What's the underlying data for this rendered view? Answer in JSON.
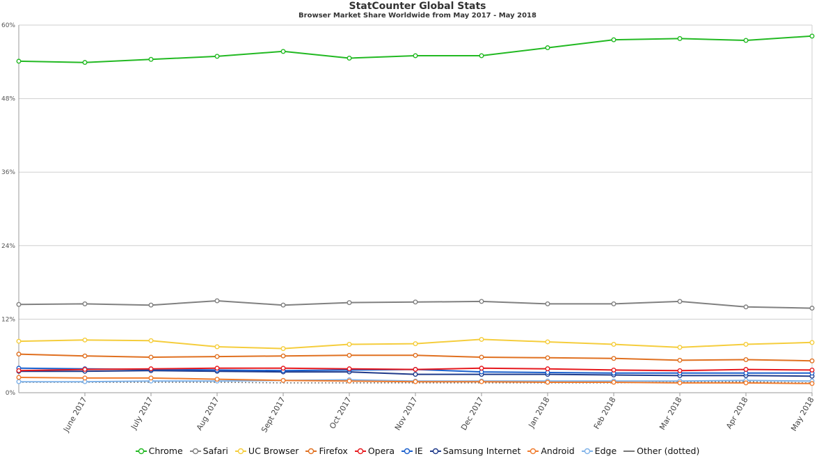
{
  "chart_data": {
    "type": "line",
    "title": "StatCounter Global Stats",
    "subtitle": "Browser Market Share Worldwide from May 2017 - May 2018",
    "xlabel": "",
    "ylabel": "",
    "x": [
      "May 2017",
      "June 2017",
      "July 2017",
      "Aug 2017",
      "Sept 2017",
      "Oct 2017",
      "Nov 2017",
      "Dec 2017",
      "Jan 2018",
      "Feb 2018",
      "Mar 2018",
      "Apr 2018",
      "May 2018"
    ],
    "x_tick_labels": [
      "June 2017",
      "July 2017",
      "Aug 2017",
      "Sept 2017",
      "Oct 2017",
      "Nov 2017",
      "Dec 2017",
      "Jan 2018",
      "Feb 2018",
      "Mar 2018",
      "Apr 2018",
      "May 2018"
    ],
    "y_ticks": [
      0,
      12,
      24,
      36,
      48,
      60
    ],
    "y_tick_labels": [
      "0%",
      "12%",
      "24%",
      "36%",
      "48%",
      "60%"
    ],
    "ylim": [
      0,
      60
    ],
    "grid": true,
    "legend_position": "bottom",
    "series": [
      {
        "name": "Chrome",
        "color": "#22b922",
        "style": "solid",
        "values": [
          54.1,
          53.9,
          54.4,
          54.9,
          55.7,
          54.6,
          55.0,
          55.0,
          56.3,
          57.6,
          57.8,
          57.5,
          58.2
        ]
      },
      {
        "name": "Safari",
        "color": "#808080",
        "style": "solid",
        "values": [
          14.4,
          14.5,
          14.3,
          15.0,
          14.3,
          14.7,
          14.8,
          14.9,
          14.5,
          14.5,
          14.9,
          14.0,
          13.8
        ]
      },
      {
        "name": "UC Browser",
        "color": "#f5cd3c",
        "style": "solid",
        "values": [
          8.4,
          8.6,
          8.5,
          7.5,
          7.2,
          7.9,
          8.0,
          8.7,
          8.3,
          7.9,
          7.4,
          7.9,
          8.2
        ]
      },
      {
        "name": "Firefox",
        "color": "#e07020",
        "style": "solid",
        "values": [
          6.3,
          6.0,
          5.8,
          5.9,
          6.0,
          6.1,
          6.1,
          5.8,
          5.7,
          5.6,
          5.3,
          5.4,
          5.2
        ]
      },
      {
        "name": "Opera",
        "color": "#e6191e",
        "style": "solid",
        "values": [
          3.6,
          3.8,
          3.9,
          4.0,
          4.0,
          3.9,
          3.8,
          4.0,
          3.9,
          3.7,
          3.6,
          3.8,
          3.7
        ]
      },
      {
        "name": "IE",
        "color": "#1a5fcc",
        "style": "solid",
        "values": [
          4.0,
          3.9,
          3.8,
          3.7,
          3.6,
          3.7,
          3.8,
          3.4,
          3.3,
          3.2,
          3.2,
          3.2,
          3.2
        ]
      },
      {
        "name": "Samsung Internet",
        "color": "#1f3a8a",
        "style": "solid",
        "values": [
          3.5,
          3.5,
          3.6,
          3.5,
          3.4,
          3.4,
          3.0,
          3.0,
          3.0,
          2.9,
          2.8,
          2.8,
          2.7
        ]
      },
      {
        "name": "Android",
        "color": "#f07b2c",
        "style": "solid",
        "values": [
          2.5,
          2.4,
          2.4,
          2.2,
          2.0,
          1.9,
          1.8,
          1.8,
          1.7,
          1.7,
          1.6,
          1.6,
          1.5
        ]
      },
      {
        "name": "Edge",
        "color": "#7fb2e8",
        "style": "solid",
        "values": [
          1.8,
          1.8,
          1.9,
          1.9,
          2.0,
          2.1,
          1.9,
          1.9,
          1.9,
          1.9,
          1.9,
          2.0,
          1.9
        ]
      },
      {
        "name": "Other (dotted)",
        "color": "#777777",
        "style": "dotted",
        "values": [
          1.7,
          1.7,
          1.7,
          1.7,
          1.6,
          1.6,
          1.6,
          1.6,
          1.6,
          1.6,
          1.8,
          1.8,
          1.6
        ]
      }
    ]
  }
}
